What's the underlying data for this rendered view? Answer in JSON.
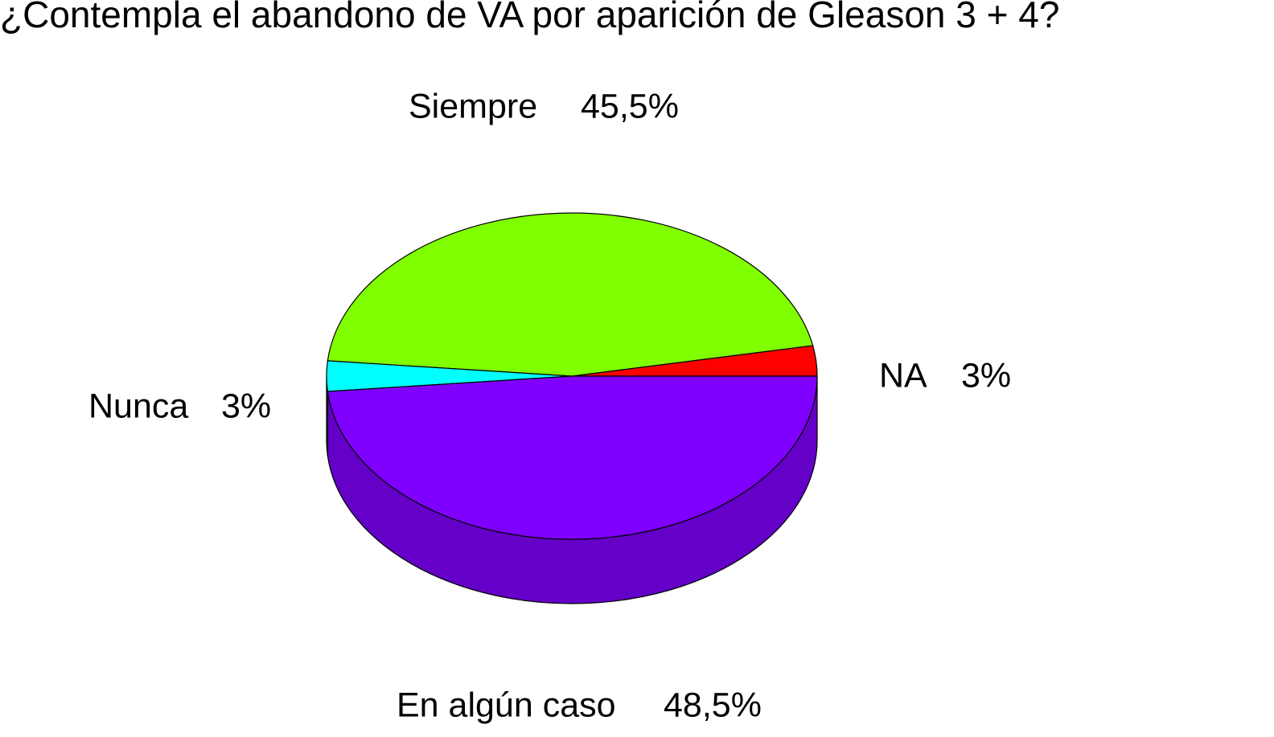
{
  "chart_data": {
    "type": "pie",
    "title": "¿Contempla el abandono de VA por aparición de Gleason 3 + 4?",
    "categories": [
      "NA",
      "Siempre",
      "Nunca",
      "En algún caso"
    ],
    "values": [
      3,
      45.5,
      3,
      48.5
    ],
    "value_labels": [
      "3%",
      "45,5%",
      "3%",
      "48,5%"
    ],
    "colors": [
      "#ff0000",
      "#80ff00",
      "#00ffff",
      "#8000ff"
    ]
  }
}
